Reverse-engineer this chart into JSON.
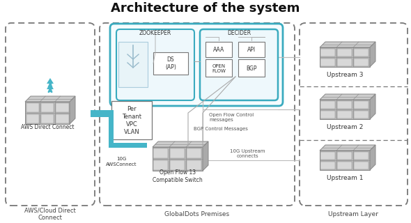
{
  "title": "Architecture of the system",
  "title_fontsize": 13,
  "bg_color": "#ffffff",
  "teal_color": "#3aabbf",
  "dash_color": "#777777",
  "label_aws_section": "AWS/Cloud Direct\nConnect",
  "label_global_section": "GlobalDots Premises",
  "label_upstream_section": "Upstream Layer",
  "label_aws_direct": "AWS Direct Connect",
  "label_per_tenant": "Per\nTenant\nVPC\nVLAN",
  "label_10g": "10G\nAWSConnect",
  "label_switch": "Open Flow 13\nCompatible Switch",
  "label_zookeeper": "ZOOKEEPER",
  "label_ds": "DS\n(AP)",
  "label_decider": "DECIDER",
  "label_aaa": "AAA",
  "label_api": "API",
  "label_openflow": "OPEN\nFLOW",
  "label_bgp": "BGP",
  "label_openflow_ctrl": "Open Flow Control\nmessages",
  "label_bgp_ctrl": "BGP Control Messages",
  "label_10g_upstream": "10G Upstream\nconnects",
  "label_upstream1": "Upstream 1",
  "label_upstream2": "Upstream 2",
  "label_upstream3": "Upstream 3",
  "gray_dark": "#888888",
  "gray_mid": "#aaaaaa",
  "gray_light": "#cccccc",
  "gray_face": "#b8b8b8",
  "teal_connect": "#45b5c8",
  "small_fs": 6.5,
  "tiny_fs": 5.5
}
